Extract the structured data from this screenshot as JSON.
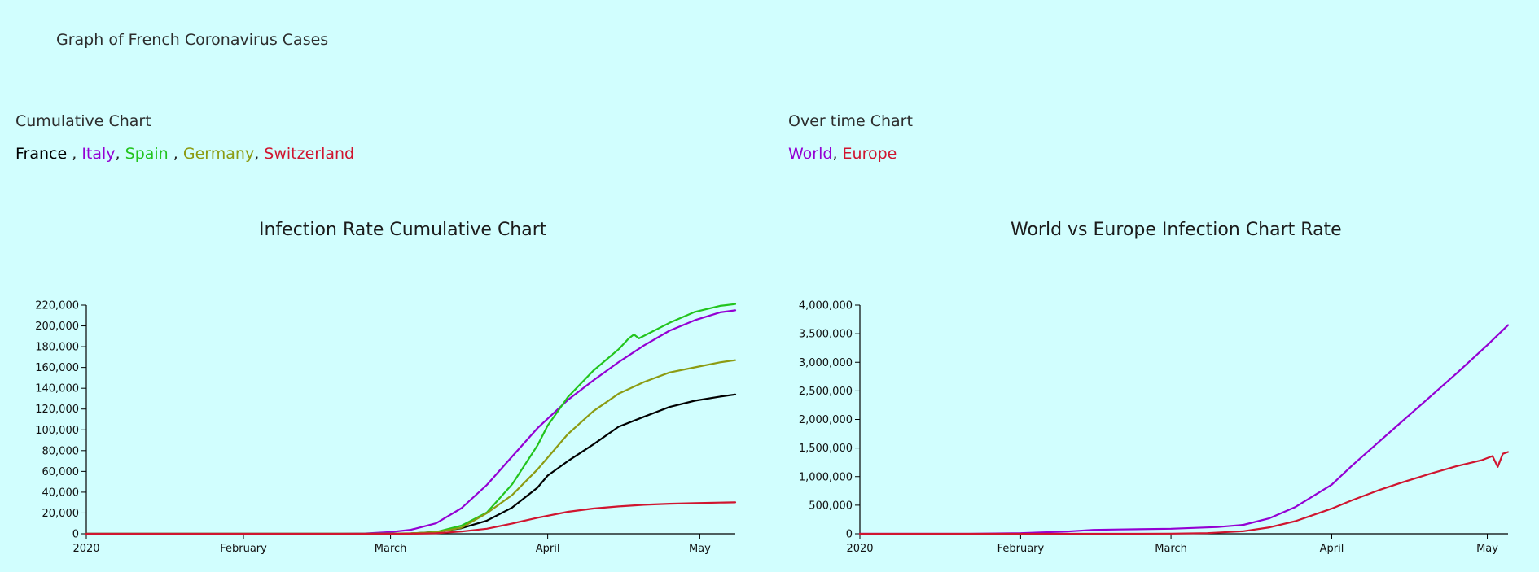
{
  "page": {
    "title": "Graph of French Coronavirus Cases"
  },
  "left_panel": {
    "section_title": "Cumulative Chart",
    "legend": [
      {
        "label": "France",
        "color": "#000000",
        "sep": " , "
      },
      {
        "label": "Italy",
        "color": "#9400d3",
        "sep": ", "
      },
      {
        "label": "Spain",
        "color": "#22c41d",
        "sep": " , "
      },
      {
        "label": "Germany",
        "color": "#8c9b12",
        "sep": ", "
      },
      {
        "label": "Switzerland",
        "color": "#d0152f",
        "sep": ""
      }
    ]
  },
  "right_panel": {
    "section_title": "Over time Chart",
    "legend": [
      {
        "label": "World",
        "color": "#9400d3",
        "sep": ", "
      },
      {
        "label": "Europe",
        "color": "#d0152f",
        "sep": ""
      }
    ]
  },
  "chart_data": [
    {
      "type": "line",
      "title": "Infection Rate Cumulative Chart",
      "xlabel": "",
      "ylabel": "",
      "x_range": [
        "2020-01-01",
        "2020-05-08"
      ],
      "x_ticks": [
        {
          "date": "2020-01-01",
          "label": "2020"
        },
        {
          "date": "2020-02-01",
          "label": "February"
        },
        {
          "date": "2020-03-01",
          "label": "March"
        },
        {
          "date": "2020-04-01",
          "label": "April"
        },
        {
          "date": "2020-05-01",
          "label": "May"
        }
      ],
      "ylim": [
        0,
        220000
      ],
      "y_ticks": [
        0,
        20000,
        40000,
        60000,
        80000,
        100000,
        120000,
        140000,
        160000,
        180000,
        200000,
        220000
      ],
      "y_tick_labels": [
        "0",
        "20,000",
        "40,000",
        "60,000",
        "80,000",
        "100,000",
        "120,000",
        "140,000",
        "160,000",
        "180,000",
        "200,000",
        "220,000"
      ],
      "grid": false,
      "series": [
        {
          "name": "France",
          "color": "#000000",
          "points": [
            [
              "2020-01-01",
              0
            ],
            [
              "2020-02-01",
              0
            ],
            [
              "2020-02-25",
              20
            ],
            [
              "2020-03-01",
              130
            ],
            [
              "2020-03-05",
              420
            ],
            [
              "2020-03-10",
              1800
            ],
            [
              "2020-03-15",
              5400
            ],
            [
              "2020-03-20",
              12600
            ],
            [
              "2020-03-25",
              25200
            ],
            [
              "2020-03-30",
              44500
            ],
            [
              "2020-04-01",
              56000
            ],
            [
              "2020-04-05",
              70000
            ],
            [
              "2020-04-10",
              86000
            ],
            [
              "2020-04-15",
              103000
            ],
            [
              "2020-04-20",
              112600
            ],
            [
              "2020-04-25",
              122000
            ],
            [
              "2020-04-30",
              128000
            ],
            [
              "2020-05-05",
              132000
            ],
            [
              "2020-05-08",
              134000
            ]
          ]
        },
        {
          "name": "Italy",
          "color": "#9400d3",
          "points": [
            [
              "2020-01-01",
              0
            ],
            [
              "2020-02-01",
              0
            ],
            [
              "2020-02-20",
              3
            ],
            [
              "2020-02-25",
              320
            ],
            [
              "2020-03-01",
              1700
            ],
            [
              "2020-03-05",
              3850
            ],
            [
              "2020-03-10",
              10100
            ],
            [
              "2020-03-15",
              24700
            ],
            [
              "2020-03-20",
              47000
            ],
            [
              "2020-03-25",
              74400
            ],
            [
              "2020-03-30",
              101700
            ],
            [
              "2020-04-05",
              128900
            ],
            [
              "2020-04-10",
              147600
            ],
            [
              "2020-04-15",
              165200
            ],
            [
              "2020-04-20",
              181200
            ],
            [
              "2020-04-25",
              195300
            ],
            [
              "2020-04-30",
              205400
            ],
            [
              "2020-05-05",
              213000
            ],
            [
              "2020-05-08",
              215000
            ]
          ]
        },
        {
          "name": "Spain",
          "color": "#22c41d",
          "points": [
            [
              "2020-01-01",
              0
            ],
            [
              "2020-02-01",
              0
            ],
            [
              "2020-02-25",
              10
            ],
            [
              "2020-03-01",
              80
            ],
            [
              "2020-03-05",
              260
            ],
            [
              "2020-03-10",
              1700
            ],
            [
              "2020-03-15",
              7800
            ],
            [
              "2020-03-20",
              20400
            ],
            [
              "2020-03-25",
              47600
            ],
            [
              "2020-03-30",
              85200
            ],
            [
              "2020-04-01",
              104100
            ],
            [
              "2020-04-05",
              131600
            ],
            [
              "2020-04-10",
              157000
            ],
            [
              "2020-04-15",
              177600
            ],
            [
              "2020-04-17",
              188000
            ],
            [
              "2020-04-18",
              191700
            ],
            [
              "2020-04-19",
              188000
            ],
            [
              "2020-04-25",
              202900
            ],
            [
              "2020-04-30",
              213400
            ],
            [
              "2020-05-05",
              219300
            ],
            [
              "2020-05-08",
              221000
            ]
          ]
        },
        {
          "name": "Germany",
          "color": "#8c9b12",
          "points": [
            [
              "2020-01-01",
              0
            ],
            [
              "2020-01-28",
              4
            ],
            [
              "2020-02-01",
              10
            ],
            [
              "2020-02-25",
              18
            ],
            [
              "2020-03-01",
              130
            ],
            [
              "2020-03-05",
              480
            ],
            [
              "2020-03-10",
              1450
            ],
            [
              "2020-03-15",
              5800
            ],
            [
              "2020-03-20",
              19800
            ],
            [
              "2020-03-25",
              37300
            ],
            [
              "2020-03-30",
              62000
            ],
            [
              "2020-04-05",
              96000
            ],
            [
              "2020-04-10",
              118000
            ],
            [
              "2020-04-15",
              134800
            ],
            [
              "2020-04-20",
              146000
            ],
            [
              "2020-04-25",
              155200
            ],
            [
              "2020-04-30",
              160100
            ],
            [
              "2020-05-05",
              165000
            ],
            [
              "2020-05-08",
              167000
            ]
          ]
        },
        {
          "name": "Switzerland",
          "color": "#d0152f",
          "points": [
            [
              "2020-01-01",
              0
            ],
            [
              "2020-02-25",
              1
            ],
            [
              "2020-03-01",
              27
            ],
            [
              "2020-03-05",
              90
            ],
            [
              "2020-03-10",
              490
            ],
            [
              "2020-03-15",
              2200
            ],
            [
              "2020-03-20",
              4840
            ],
            [
              "2020-03-25",
              9900
            ],
            [
              "2020-03-30",
              15400
            ],
            [
              "2020-04-05",
              21100
            ],
            [
              "2020-04-10",
              24300
            ],
            [
              "2020-04-15",
              26300
            ],
            [
              "2020-04-20",
              27900
            ],
            [
              "2020-04-25",
              28900
            ],
            [
              "2020-04-30",
              29400
            ],
            [
              "2020-05-05",
              30000
            ],
            [
              "2020-05-08",
              30200
            ]
          ]
        }
      ]
    },
    {
      "type": "line",
      "title": "World vs Europe Infection Chart Rate",
      "xlabel": "",
      "ylabel": "",
      "x_range": [
        "2020-01-01",
        "2020-05-05"
      ],
      "x_ticks": [
        {
          "date": "2020-01-01",
          "label": "2020"
        },
        {
          "date": "2020-02-01",
          "label": "February"
        },
        {
          "date": "2020-03-01",
          "label": "March"
        },
        {
          "date": "2020-04-01",
          "label": "April"
        },
        {
          "date": "2020-05-01",
          "label": "May"
        }
      ],
      "ylim": [
        0,
        4000000
      ],
      "y_ticks": [
        0,
        500000,
        1000000,
        1500000,
        2000000,
        2500000,
        3000000,
        3500000,
        4000000
      ],
      "y_tick_labels": [
        "0",
        "500,000",
        "1,000,000",
        "1,500,000",
        "2,000,000",
        "2,500,000",
        "3,000,000",
        "3,500,000",
        "4,000,000"
      ],
      "grid": false,
      "series": [
        {
          "name": "World",
          "color": "#9400d3",
          "points": [
            [
              "2020-01-01",
              0
            ],
            [
              "2020-01-15",
              50
            ],
            [
              "2020-01-22",
              580
            ],
            [
              "2020-02-01",
              12000
            ],
            [
              "2020-02-10",
              40000
            ],
            [
              "2020-02-15",
              69000
            ],
            [
              "2020-02-20",
              76000
            ],
            [
              "2020-03-01",
              88000
            ],
            [
              "2020-03-10",
              118000
            ],
            [
              "2020-03-15",
              156000
            ],
            [
              "2020-03-20",
              272000
            ],
            [
              "2020-03-25",
              468000
            ],
            [
              "2020-04-01",
              858000
            ],
            [
              "2020-04-05",
              1200000
            ],
            [
              "2020-04-10",
              1600000
            ],
            [
              "2020-04-15",
              2000000
            ],
            [
              "2020-04-20",
              2400000
            ],
            [
              "2020-04-25",
              2800000
            ],
            [
              "2020-05-01",
              3300000
            ],
            [
              "2020-05-05",
              3650000
            ]
          ]
        },
        {
          "name": "Europe",
          "color": "#d0152f",
          "points": [
            [
              "2020-01-01",
              0
            ],
            [
              "2020-02-01",
              0
            ],
            [
              "2020-02-20",
              400
            ],
            [
              "2020-03-01",
              2300
            ],
            [
              "2020-03-08",
              12000
            ],
            [
              "2020-03-15",
              45000
            ],
            [
              "2020-03-20",
              112000
            ],
            [
              "2020-03-25",
              220000
            ],
            [
              "2020-04-01",
              440000
            ],
            [
              "2020-04-05",
              590000
            ],
            [
              "2020-04-10",
              760000
            ],
            [
              "2020-04-15",
              910000
            ],
            [
              "2020-04-20",
              1050000
            ],
            [
              "2020-04-25",
              1180000
            ],
            [
              "2020-04-30",
              1290000
            ],
            [
              "2020-05-02",
              1360000
            ],
            [
              "2020-05-03",
              1170000
            ],
            [
              "2020-05-04",
              1400000
            ],
            [
              "2020-05-05",
              1430000
            ]
          ]
        }
      ]
    }
  ]
}
